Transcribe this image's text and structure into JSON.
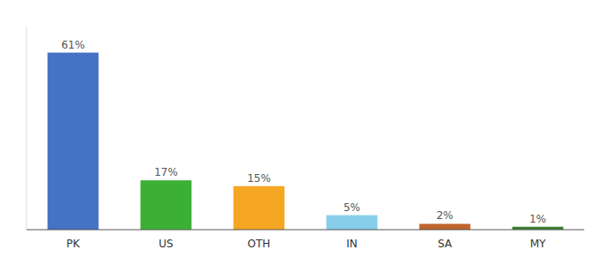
{
  "chart_data": {
    "type": "bar",
    "categories": [
      "PK",
      "US",
      "OTH",
      "IN",
      "SA",
      "MY"
    ],
    "values": [
      61,
      17,
      15,
      5,
      2,
      1
    ],
    "value_labels": [
      "61%",
      "17%",
      "15%",
      "5%",
      "2%",
      "1%"
    ],
    "colors": [
      "#4472c4",
      "#3cb034",
      "#f5a623",
      "#87ceeb",
      "#c0652b",
      "#3a7d2c"
    ],
    "ylim": [
      0,
      70
    ],
    "data_labels": true,
    "tick_labels": "x",
    "grid": false
  }
}
